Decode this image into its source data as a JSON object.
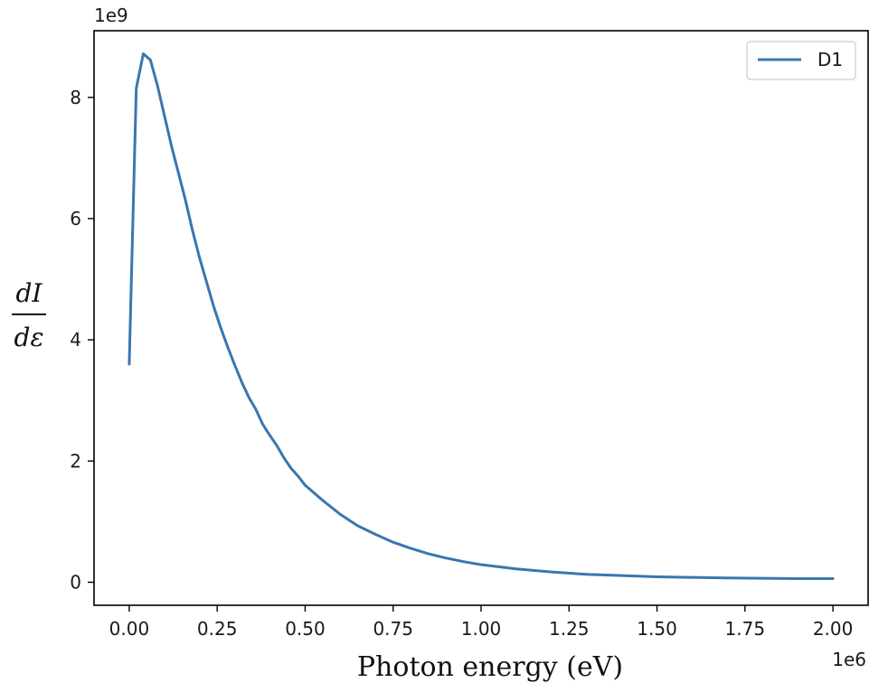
{
  "chart_data": {
    "type": "line",
    "title": "",
    "xlabel": "Photon energy (eV)",
    "ylabel": {
      "numerator": "dI",
      "denominator": "dε"
    },
    "x_offset_label": "1e6",
    "y_offset_label": "1e9",
    "xlim": [
      -0.1,
      2.1
    ],
    "ylim": [
      -0.38,
      9.1
    ],
    "x_scale": 1000000,
    "y_scale": 1000000000,
    "xticks": [
      0.0,
      0.25,
      0.5,
      0.75,
      1.0,
      1.25,
      1.5,
      1.75,
      2.0
    ],
    "xtick_labels": [
      "0.00",
      "0.25",
      "0.50",
      "0.75",
      "1.00",
      "1.25",
      "1.50",
      "1.75",
      "2.00"
    ],
    "yticks": [
      0,
      2,
      4,
      6,
      8
    ],
    "ytick_labels": [
      "0",
      "2",
      "4",
      "6",
      "8"
    ],
    "grid": false,
    "legend_position": "top-right",
    "series": [
      {
        "name": "D1",
        "color": "#3a76af",
        "x": [
          0.0,
          0.02,
          0.04,
          0.06,
          0.08,
          0.1,
          0.12,
          0.14,
          0.16,
          0.18,
          0.2,
          0.22,
          0.24,
          0.26,
          0.28,
          0.3,
          0.32,
          0.34,
          0.36,
          0.38,
          0.4,
          0.42,
          0.44,
          0.46,
          0.48,
          0.5,
          0.55,
          0.6,
          0.65,
          0.7,
          0.75,
          0.8,
          0.85,
          0.9,
          0.95,
          1.0,
          1.1,
          1.2,
          1.3,
          1.4,
          1.5,
          1.6,
          1.7,
          1.8,
          1.9,
          2.0
        ],
        "y": [
          3.6,
          8.15,
          8.72,
          8.62,
          8.2,
          7.7,
          7.2,
          6.75,
          6.3,
          5.8,
          5.35,
          4.95,
          4.55,
          4.2,
          3.88,
          3.58,
          3.3,
          3.05,
          2.85,
          2.6,
          2.42,
          2.25,
          2.05,
          1.88,
          1.75,
          1.6,
          1.35,
          1.12,
          0.93,
          0.79,
          0.66,
          0.56,
          0.47,
          0.4,
          0.34,
          0.29,
          0.22,
          0.17,
          0.13,
          0.11,
          0.09,
          0.08,
          0.07,
          0.065,
          0.06,
          0.06
        ]
      }
    ]
  }
}
